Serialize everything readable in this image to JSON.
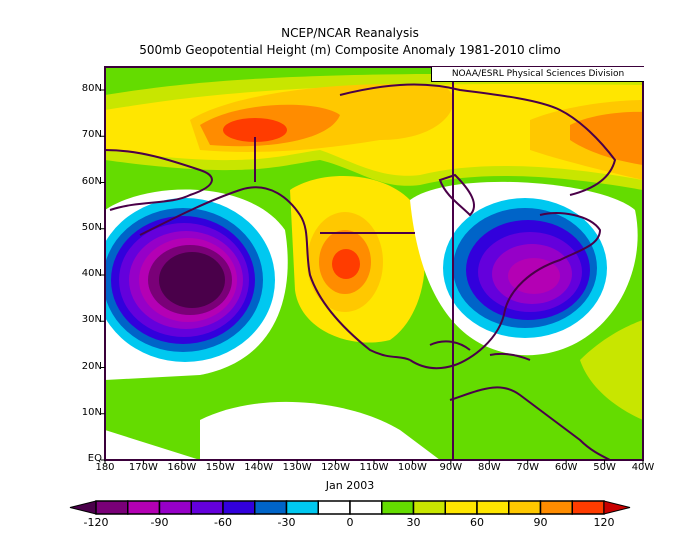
{
  "title": "NCEP/NCAR Reanalysis",
  "subtitle": "500mb Geopotential Height (m) Composite Anomaly 1981-2010 climo",
  "credit": "NOAA/ESRL Physical Sciences Division",
  "period": "Jan 2003",
  "lat_labels": [
    "80N",
    "70N",
    "60N",
    "50N",
    "40N",
    "30N",
    "20N",
    "10N",
    "EQ"
  ],
  "lon_labels": [
    "180",
    "170W",
    "160W",
    "150W",
    "140W",
    "130W",
    "120W",
    "110W",
    "100W",
    "90W",
    "80W",
    "70W",
    "60W",
    "50W",
    "40W"
  ],
  "colorbar": {
    "labels": [
      "-120",
      "-90",
      "-60",
      "-30",
      "0",
      "30",
      "60",
      "90",
      "120"
    ],
    "colors": [
      "#4a004a",
      "#7a0078",
      "#b400b4",
      "#9600c8",
      "#6400dc",
      "#3200dc",
      "#0064c8",
      "#00c8f0",
      "#ffffff",
      "#ffffff",
      "#64dc00",
      "#c8e600",
      "#ffe600",
      "#ffe600",
      "#ffc800",
      "#ff8c00",
      "#ff3c00",
      "#c80000"
    ]
  }
}
